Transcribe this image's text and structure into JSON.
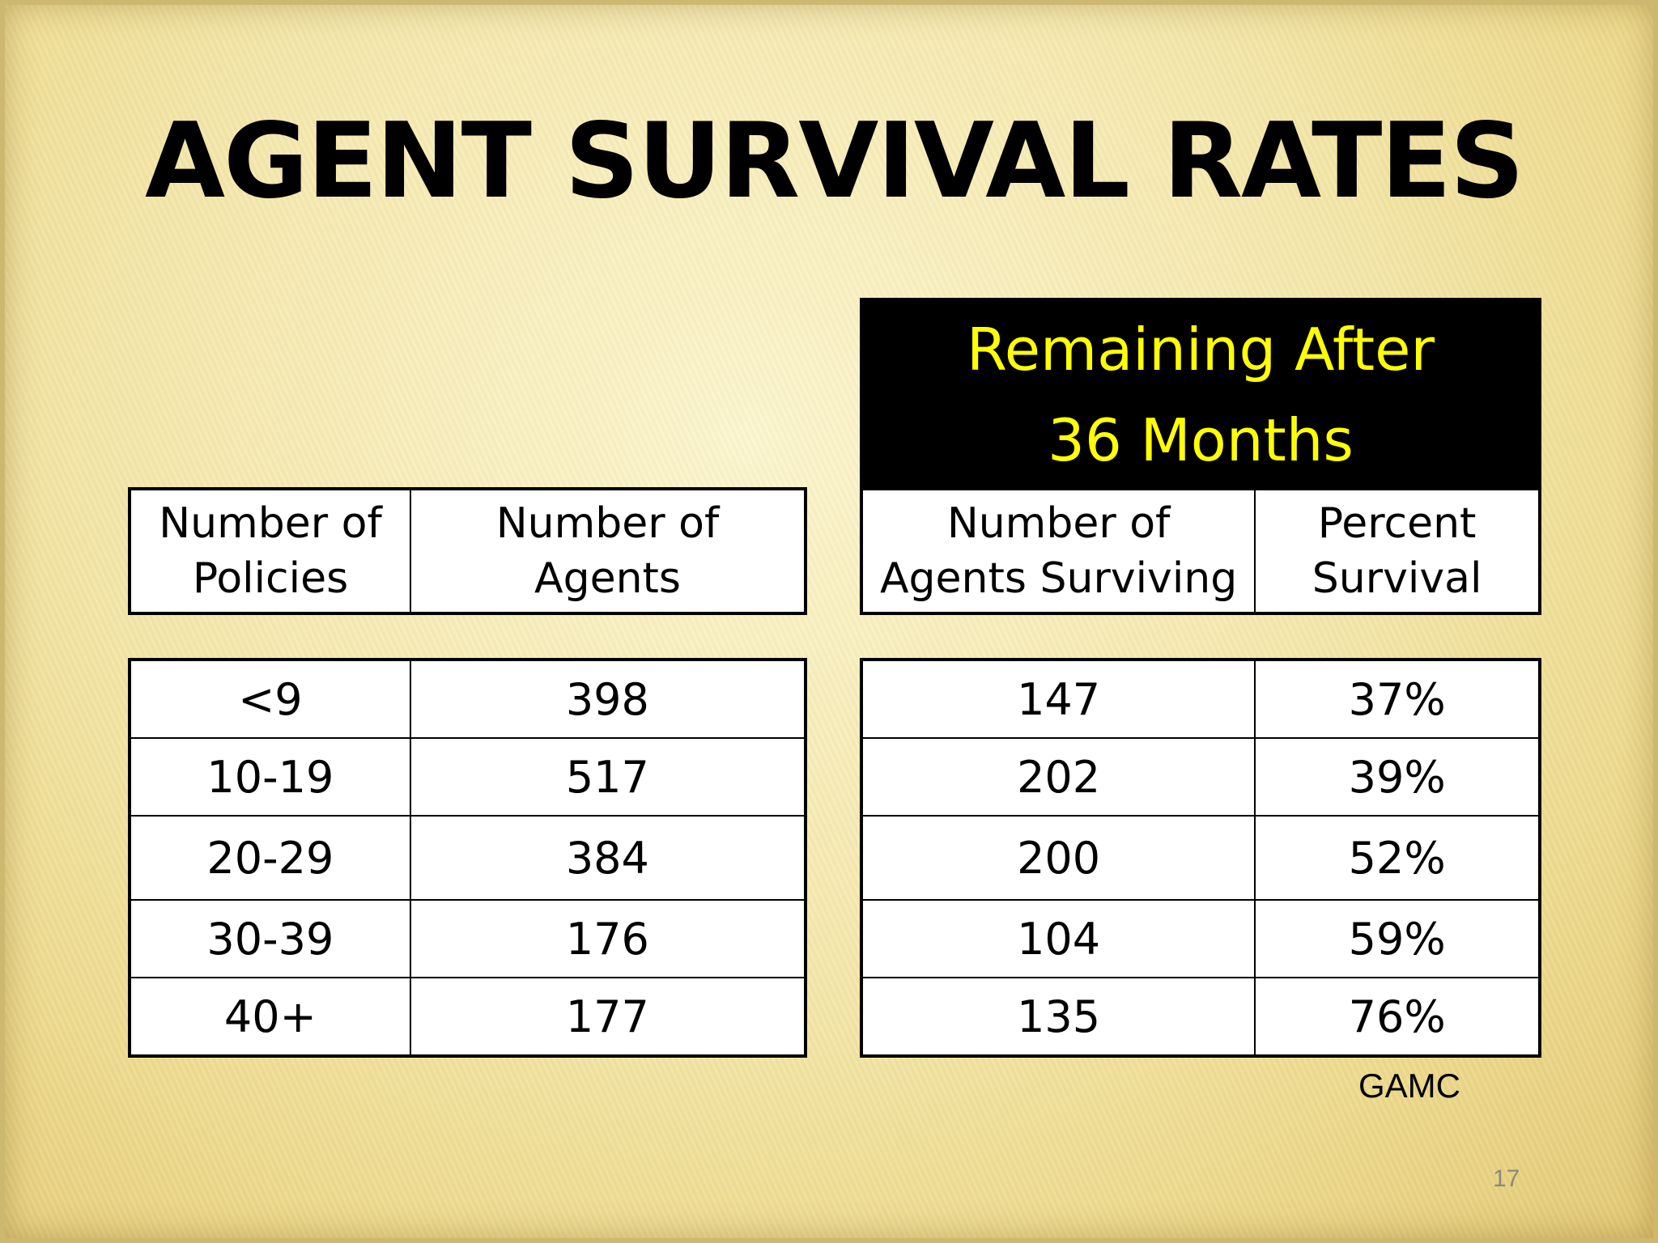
{
  "slide": {
    "title": "AGENT SURVIVAL RATES",
    "banner_line1": "Remaining After",
    "banner_line2": "36 Months",
    "source": "GAMC",
    "page_number": "17"
  },
  "colors": {
    "banner_bg": "#000000",
    "banner_text": "#ffff00",
    "background": "#f4e8ae"
  },
  "table": {
    "headers": {
      "policies_line1": "Number of",
      "policies_line2": "Policies",
      "agents_line1": "Number of",
      "agents_line2": "Agents",
      "surviving_line1": "Number of",
      "surviving_line2": "Agents Surviving",
      "percent_line1": "Percent",
      "percent_line2": "Survival"
    },
    "rows": [
      {
        "policies": "<9",
        "agents": "398",
        "surviving": "147",
        "percent": "37%"
      },
      {
        "policies": "10-19",
        "agents": "517",
        "surviving": "202",
        "percent": "39%"
      },
      {
        "policies": "20-29",
        "agents": "384",
        "surviving": "200",
        "percent": "52%"
      },
      {
        "policies": "30-39",
        "agents": "176",
        "surviving": "104",
        "percent": "59%"
      },
      {
        "policies": "40+",
        "agents": "177",
        "surviving": "135",
        "percent": "76%"
      }
    ]
  }
}
